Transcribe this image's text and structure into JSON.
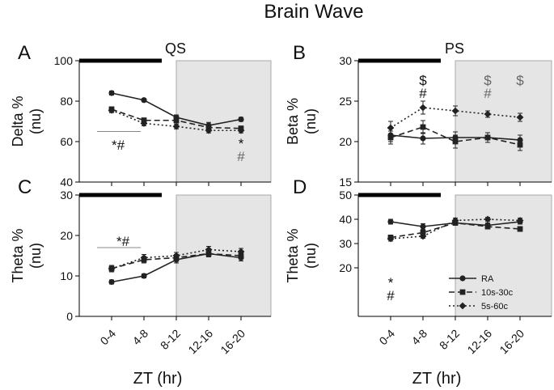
{
  "figure": {
    "title": "Brain Wave",
    "xlabel": "ZT (hr)"
  },
  "colors": {
    "dark_period_bar": "#000000",
    "shaded_region": "#e5e5e5",
    "series_color": "#222222",
    "annotation_gray": "#666666"
  },
  "legend": {
    "placement": "inside-bottom-right of panel D",
    "entries": [
      {
        "name": "RA",
        "line": "solid",
        "marker": "circle"
      },
      {
        "name": "10s-30c",
        "line": "dashed",
        "marker": "square"
      },
      {
        "name": "5s-60c",
        "line": "dotted",
        "marker": "diamond"
      }
    ]
  },
  "chart_data": [
    {
      "panel": "A",
      "type": "line",
      "title": "QS",
      "ylabel_line1": "Delta %",
      "ylabel_line2": "(nu)",
      "xlabel": "ZT (hr)",
      "categories": [
        "0-4",
        "4-8",
        "8-12",
        "12-16",
        "16-20"
      ],
      "ylim": [
        40,
        100
      ],
      "yticks": [
        40,
        60,
        80,
        100
      ],
      "dark_period": [
        "0-4",
        "4-8"
      ],
      "shaded_from": "12-16",
      "series": [
        {
          "name": "RA",
          "values": [
            84,
            80.5,
            72,
            68,
            71
          ],
          "err": [
            1,
            0.8,
            1.2,
            1.5,
            1
          ]
        },
        {
          "name": "10s-30c",
          "values": [
            76,
            70.5,
            70.5,
            67,
            66.5
          ],
          "err": [
            1.2,
            1.2,
            1.2,
            1.5,
            1.2
          ]
        },
        {
          "name": "5s-60c",
          "values": [
            75.5,
            69,
            67.5,
            65.5,
            65.5
          ],
          "err": [
            1.2,
            1.2,
            1.2,
            1.2,
            1.2
          ]
        }
      ],
      "annotations": [
        {
          "text": "*#",
          "at": "0-4",
          "color": "black"
        },
        {
          "text": "*",
          "at": "16-20",
          "color": "black"
        },
        {
          "text": "#",
          "at": "16-20",
          "color": "gray"
        }
      ],
      "bracket": {
        "from": "0-4",
        "to": "4-8",
        "y": 65
      }
    },
    {
      "panel": "B",
      "type": "line",
      "title": "PS",
      "ylabel_line1": "Beta %",
      "ylabel_line2": "(nu)",
      "xlabel": "ZT (hr)",
      "categories": [
        "0-4",
        "4-8",
        "8-12",
        "12-16",
        "16-20"
      ],
      "ylim": [
        15,
        30
      ],
      "yticks": [
        15,
        20,
        25,
        30
      ],
      "dark_period": [
        "0-4",
        "4-8"
      ],
      "shaded_from": "12-16",
      "series": [
        {
          "name": "RA",
          "values": [
            20.8,
            20.4,
            20.5,
            20.5,
            20.2
          ],
          "err": [
            0.8,
            0.7,
            0.7,
            0.6,
            0.6
          ]
        },
        {
          "name": "10s-30c",
          "values": [
            20.5,
            21.8,
            20,
            20.5,
            19.6
          ],
          "err": [
            0.8,
            0.8,
            0.8,
            0.6,
            0.7
          ]
        },
        {
          "name": "5s-60c",
          "values": [
            21.7,
            24.2,
            23.8,
            23.4,
            23
          ],
          "err": [
            0.8,
            0.8,
            0.6,
            0.4,
            0.5
          ]
        }
      ],
      "annotations": [
        {
          "text": "$",
          "at": "4-8",
          "color": "black"
        },
        {
          "text": "#",
          "at": "4-8",
          "color": "black"
        },
        {
          "text": "$",
          "at": "12-16",
          "color": "gray"
        },
        {
          "text": "#",
          "at": "12-16",
          "color": "gray"
        },
        {
          "text": "$",
          "at": "16-20",
          "color": "gray"
        }
      ]
    },
    {
      "panel": "C",
      "type": "line",
      "title": "",
      "ylabel_line1": "Theta %",
      "ylabel_line2": "(nu)",
      "xlabel": "ZT (hr)",
      "categories": [
        "0-4",
        "4-8",
        "8-12",
        "12-16",
        "16-20"
      ],
      "ylim": [
        0,
        30
      ],
      "yticks": [
        0,
        10,
        20,
        30
      ],
      "dark_period": [
        "0-4",
        "4-8"
      ],
      "shaded_from": "12-16",
      "series": [
        {
          "name": "RA",
          "values": [
            8.5,
            10,
            14,
            15.5,
            14.5
          ],
          "err": [
            0.5,
            0.5,
            0.8,
            0.8,
            0.8
          ]
        },
        {
          "name": "10s-30c",
          "values": [
            11.8,
            14,
            14.5,
            15.5,
            15
          ],
          "err": [
            0.8,
            0.8,
            0.8,
            0.8,
            0.8
          ]
        },
        {
          "name": "5s-60c",
          "values": [
            11.8,
            14.5,
            15,
            16.5,
            16
          ],
          "err": [
            0.8,
            0.8,
            0.8,
            0.8,
            0.8
          ]
        }
      ],
      "annotations": [
        {
          "text": "*#",
          "at": "0-4",
          "color": "black"
        }
      ],
      "bracket": {
        "from": "0-4",
        "to": "4-8",
        "y": 17
      }
    },
    {
      "panel": "D",
      "type": "line",
      "title": "",
      "ylabel_line1": "Theta %",
      "ylabel_line2": "(nu)",
      "xlabel": "ZT (hr)",
      "categories": [
        "0-4",
        "4-8",
        "8-12",
        "12-16",
        "16-20"
      ],
      "ylim": [
        0,
        50
      ],
      "yticks": [
        20,
        30,
        40,
        50
      ],
      "dark_period": [
        "0-4",
        "4-8"
      ],
      "shaded_from": "12-16",
      "series": [
        {
          "name": "RA",
          "values": [
            39,
            37,
            38.5,
            37.5,
            39
          ],
          "err": [
            1,
            1.2,
            1,
            1,
            1
          ]
        },
        {
          "name": "10s-30c",
          "values": [
            32.5,
            34.5,
            38.5,
            37,
            36
          ],
          "err": [
            1,
            1,
            1,
            1,
            1
          ]
        },
        {
          "name": "5s-60c",
          "values": [
            32,
            33,
            39.5,
            40,
            39.5
          ],
          "err": [
            1,
            0.8,
            1,
            0.8,
            1
          ]
        }
      ],
      "annotations": [
        {
          "text": "*",
          "at": "0-4",
          "color": "black"
        },
        {
          "text": "#",
          "at": "0-4",
          "color": "black"
        }
      ]
    }
  ]
}
